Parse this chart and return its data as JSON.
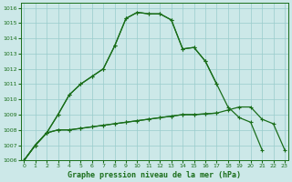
{
  "title": "Graphe pression niveau de la mer (hPa)",
  "bg_color": "#cce8e8",
  "grid_color": "#99cccc",
  "line_color": "#1a6e1a",
  "xlim": [
    -0.3,
    23.3
  ],
  "ylim": [
    1006,
    1016.3
  ],
  "xticks": [
    0,
    1,
    2,
    3,
    4,
    5,
    6,
    7,
    8,
    9,
    10,
    11,
    12,
    13,
    14,
    15,
    16,
    17,
    18,
    19,
    20,
    21,
    22,
    23
  ],
  "yticks": [
    1006,
    1007,
    1008,
    1009,
    1010,
    1011,
    1012,
    1013,
    1014,
    1015,
    1016
  ],
  "series": [
    [
      1006.0,
      1007.0,
      1007.8,
      1009.0,
      1010.3,
      1011.0,
      1011.5,
      1012.0,
      1013.5,
      1015.3,
      1015.7,
      1015.6,
      1015.6,
      1015.2,
      1013.3,
      1013.4,
      1012.5,
      1011.0,
      null,
      null,
      null,
      null,
      null,
      null
    ],
    [
      1006.0,
      1007.0,
      1007.8,
      1009.0,
      1010.3,
      1011.0,
      1011.5,
      1012.0,
      1013.5,
      1015.3,
      1015.7,
      1015.6,
      1015.6,
      1015.2,
      1013.3,
      1013.4,
      1012.5,
      1011.0,
      1009.5,
      1008.8,
      1008.5,
      1006.7,
      null,
      null
    ],
    [
      1006.0,
      1007.0,
      1007.8,
      1008.0,
      1008.0,
      1008.1,
      1008.2,
      1008.3,
      1008.4,
      1008.5,
      1008.6,
      1008.7,
      1008.8,
      1008.9,
      1009.0,
      1009.0,
      1009.05,
      1009.1,
      null,
      null,
      null,
      null,
      null,
      null
    ],
    [
      1006.0,
      1007.0,
      1007.8,
      1008.0,
      1008.0,
      1008.1,
      1008.2,
      1008.3,
      1008.4,
      1008.5,
      1008.6,
      1008.7,
      1008.8,
      1008.9,
      1009.0,
      1009.0,
      1009.05,
      1009.1,
      1009.3,
      1009.5,
      1009.5,
      1008.7,
      1008.4,
      1006.7
    ]
  ]
}
